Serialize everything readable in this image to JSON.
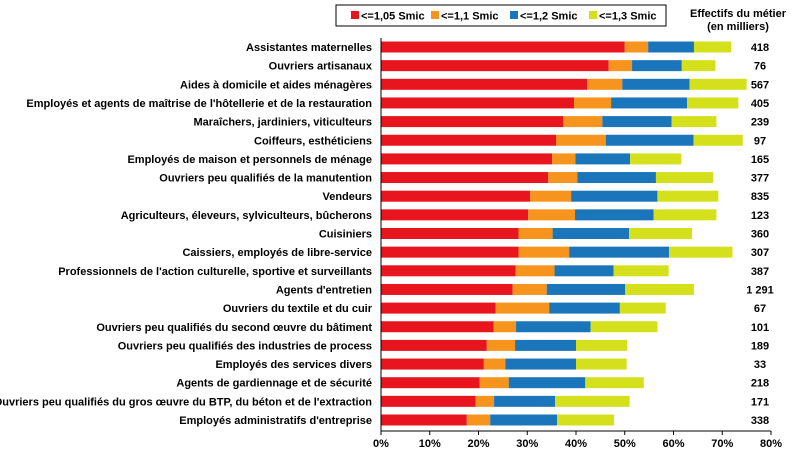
{
  "chart_data": {
    "type": "bar",
    "orientation": "horizontal",
    "stacked": true,
    "legend_position": "top",
    "legend_entries": [
      {
        "name": "<=1,05 Smic",
        "color": "#e8141e"
      },
      {
        "name": "<=1,1 Smic",
        "color": "#f7941d"
      },
      {
        "name": "<=1,2 Smic",
        "color": "#1b75bb"
      },
      {
        "name": "<=1,3 Smic",
        "color": "#d4e01c"
      }
    ],
    "side_header_line1": "Effectifs du métier",
    "side_header_line2": "(en milliers)",
    "xlim": [
      0,
      80
    ],
    "x_ticks": [
      "0%",
      "10%",
      "20%",
      "30%",
      "40%",
      "50%",
      "60%",
      "70%",
      "80%"
    ],
    "grid": false,
    "categories": [
      "Assistantes maternelles",
      "Ouvriers artisanaux",
      "Aides à domicile et aides ménagères",
      "Employés et agents de maîtrise de l'hôtellerie et de la restauration",
      "Maraîchers, jardiniers, viticulteurs",
      "Coiffeurs, esthéticiens",
      "Employés de maison et personnels de ménage",
      "Ouvriers peu qualifiés de la manutention",
      "Vendeurs",
      "Agriculteurs, éleveurs, sylviculteurs, bûcherons",
      "Cuisiniers",
      "Caissiers, employés de libre-service",
      "Professionnels de l'action culturelle, sportive et surveillants",
      "Agents d'entretien",
      "Ouvriers du textile et du cuir",
      "Ouvriers peu qualifiés du second œuvre du bâtiment",
      "Ouvriers peu qualifiés des industries de process",
      "Employés des services divers",
      "Agents de gardiennage et de sécurité",
      "Ouvriers peu qualifiés du gros œuvre du BTP, du béton et de l'extraction",
      "Employés administratifs d'entreprise"
    ],
    "effectifs": [
      "418",
      "76",
      "567",
      "405",
      "239",
      "97",
      "165",
      "377",
      "835",
      "123",
      "360",
      "307",
      "387",
      "1 291",
      "67",
      "101",
      "189",
      "33",
      "218",
      "171",
      "338"
    ],
    "series": [
      {
        "name": "<=1,05 Smic",
        "values": [
          50.0,
          46.7,
          42.3,
          39.6,
          37.4,
          35.9,
          35.1,
          34.3,
          30.6,
          30.2,
          28.2,
          28.2,
          27.6,
          27.0,
          23.5,
          23.1,
          21.7,
          21.1,
          20.2,
          19.4,
          17.6
        ]
      },
      {
        "name": "<=1,1 Smic",
        "values": [
          4.8,
          4.8,
          7.2,
          7.6,
          8.0,
          10.2,
          4.8,
          6.0,
          8.4,
          9.6,
          7.0,
          10.4,
          8.0,
          7.0,
          11.0,
          4.6,
          5.8,
          4.4,
          6.0,
          3.8,
          4.8
        ]
      },
      {
        "name": "<=1,2 Smic",
        "values": [
          9.4,
          10.2,
          13.8,
          15.6,
          14.2,
          18.0,
          11.2,
          16.1,
          17.7,
          16.1,
          15.7,
          20.5,
          12.1,
          16.1,
          14.5,
          15.3,
          12.5,
          14.5,
          15.7,
          12.5,
          13.7
        ]
      },
      {
        "name": "<=1,3 Smic",
        "values": [
          7.6,
          6.9,
          11.7,
          10.5,
          9.2,
          10.1,
          10.5,
          11.7,
          12.5,
          12.9,
          12.9,
          13.0,
          11.3,
          14.1,
          9.4,
          13.7,
          10.5,
          10.4,
          12.0,
          15.3,
          11.7
        ]
      }
    ]
  }
}
